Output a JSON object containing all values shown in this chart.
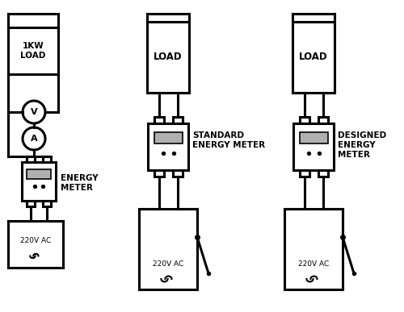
{
  "bg_color": "#ffffff",
  "line_color": "#000000",
  "gray_color": "#b0b0b0",
  "lw": 2.2,
  "fig_width": 5.0,
  "fig_height": 3.87,
  "dpi": 100,
  "diagram1": {
    "label_load": "1KW\nLOAD",
    "label_meter": "ENERGY\nMETER",
    "label_supply": "220V AC"
  },
  "diagram2": {
    "label_load": "LOAD",
    "label_meter": "STANDARD\nENERGY METER",
    "label_supply": "220V AC"
  },
  "diagram3": {
    "label_load": "LOAD",
    "label_meter": "DESIGNED\nENERGY\nMETER",
    "label_supply": "220V AC"
  }
}
